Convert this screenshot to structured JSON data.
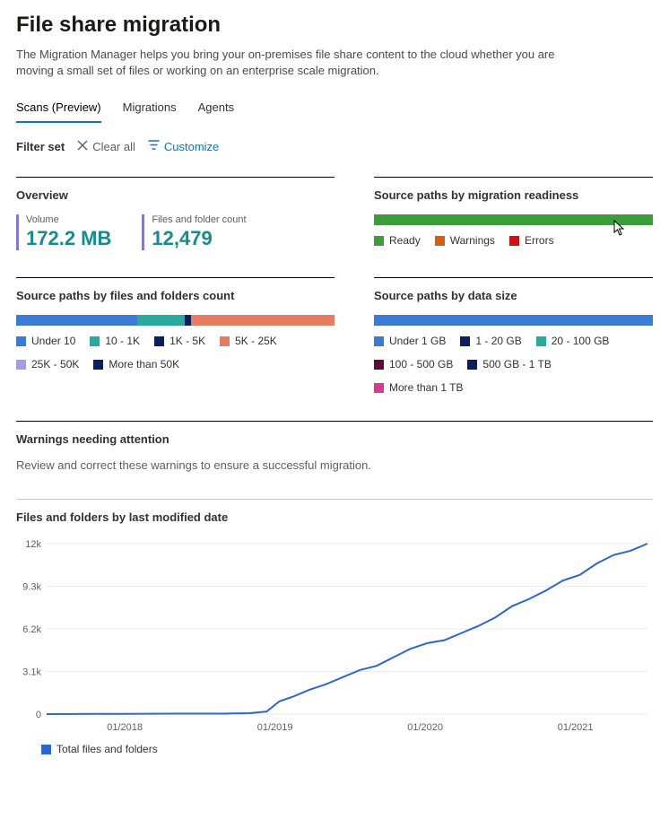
{
  "page": {
    "title": "File share migration",
    "description": "The Migration Manager helps you bring your on-premises file share content to the cloud whether you are moving a small set of files or working on an enterprise scale migration."
  },
  "tabs": [
    {
      "label": "Scans (Preview)",
      "active": true
    },
    {
      "label": "Migrations",
      "active": false
    },
    {
      "label": "Agents",
      "active": false
    }
  ],
  "filter_bar": {
    "label": "Filter set",
    "clear_label": "Clear all",
    "customize_label": "Customize"
  },
  "overview": {
    "title": "Overview",
    "volume_label": "Volume",
    "volume_value": "172.2 MB",
    "files_label": "Files and folder count",
    "files_value": "12,479",
    "accent_color": "#8378de",
    "value_color": "#158c8c"
  },
  "readiness": {
    "title": "Source paths by migration readiness",
    "segments": [
      {
        "label": "Ready",
        "color": "#3b9e3b",
        "pct": 100
      },
      {
        "label": "Warnings",
        "color": "#d65f0e",
        "pct": 0
      },
      {
        "label": "Errors",
        "color": "#d40e0e",
        "pct": 0
      }
    ]
  },
  "files_count_chart": {
    "title": "Source paths by files and folders count",
    "segments": [
      {
        "label": "Under 10",
        "color": "#3a7bd5",
        "pct": 38
      },
      {
        "label": "10 - 1K",
        "color": "#2aa9a0",
        "pct": 15
      },
      {
        "label": "1K - 5K",
        "color": "#0b1e5e",
        "pct": 2
      },
      {
        "label": "5K - 25K",
        "color": "#e87c63",
        "pct": 45
      },
      {
        "label": "25K - 50K",
        "color": "#a89ce0",
        "pct": 0
      },
      {
        "label": "More than 50K",
        "color": "#0b1e5e",
        "pct": 0
      }
    ]
  },
  "data_size_chart": {
    "title": "Source paths by data size",
    "segments": [
      {
        "label": "Under 1 GB",
        "color": "#3a7bd5",
        "pct": 100
      },
      {
        "label": "1 - 20 GB",
        "color": "#0b1e5e",
        "pct": 0
      },
      {
        "label": "20 - 100 GB",
        "color": "#2aa9a0",
        "pct": 0
      },
      {
        "label": "100 - 500 GB",
        "color": "#5a0b3b",
        "pct": 0
      },
      {
        "label": "500 GB - 1 TB",
        "color": "#0b1e5e",
        "pct": 0
      },
      {
        "label": "More than 1 TB",
        "color": "#d63b8e",
        "pct": 0
      }
    ]
  },
  "warnings_panel": {
    "title": "Warnings needing attention",
    "subtitle": "Review and correct these warnings to ensure a successful migration."
  },
  "line_chart": {
    "title": "Files and folders by last modified date",
    "type": "line",
    "series_label": "Total files and folders",
    "series_color": "#2b66d4",
    "background_color": "#ffffff",
    "grid_color": "#edebe9",
    "y_ticks": [
      "0",
      "3.1k",
      "6.2k",
      "9.3k",
      "12k"
    ],
    "ylim": [
      0,
      12000
    ],
    "x_labels": [
      "01/2018",
      "01/2019",
      "01/2020",
      "01/2021"
    ],
    "points": [
      {
        "x": 0,
        "y": 0
      },
      {
        "x": 30,
        "y": 10
      },
      {
        "x": 60,
        "y": 15
      },
      {
        "x": 90,
        "y": 12
      },
      {
        "x": 120,
        "y": 20
      },
      {
        "x": 150,
        "y": 30
      },
      {
        "x": 180,
        "y": 28
      },
      {
        "x": 210,
        "y": 35
      },
      {
        "x": 240,
        "y": 60
      },
      {
        "x": 260,
        "y": 180
      },
      {
        "x": 275,
        "y": 900
      },
      {
        "x": 290,
        "y": 1200
      },
      {
        "x": 310,
        "y": 1700
      },
      {
        "x": 330,
        "y": 2100
      },
      {
        "x": 350,
        "y": 2600
      },
      {
        "x": 370,
        "y": 3100
      },
      {
        "x": 390,
        "y": 3400
      },
      {
        "x": 410,
        "y": 4000
      },
      {
        "x": 430,
        "y": 4600
      },
      {
        "x": 450,
        "y": 5000
      },
      {
        "x": 470,
        "y": 5200
      },
      {
        "x": 490,
        "y": 5700
      },
      {
        "x": 510,
        "y": 6200
      },
      {
        "x": 530,
        "y": 6800
      },
      {
        "x": 550,
        "y": 7600
      },
      {
        "x": 570,
        "y": 8100
      },
      {
        "x": 590,
        "y": 8700
      },
      {
        "x": 610,
        "y": 9400
      },
      {
        "x": 630,
        "y": 9800
      },
      {
        "x": 650,
        "y": 10600
      },
      {
        "x": 670,
        "y": 11200
      },
      {
        "x": 690,
        "y": 11500
      },
      {
        "x": 710,
        "y": 12000
      }
    ],
    "x_range": [
      0,
      710
    ]
  }
}
